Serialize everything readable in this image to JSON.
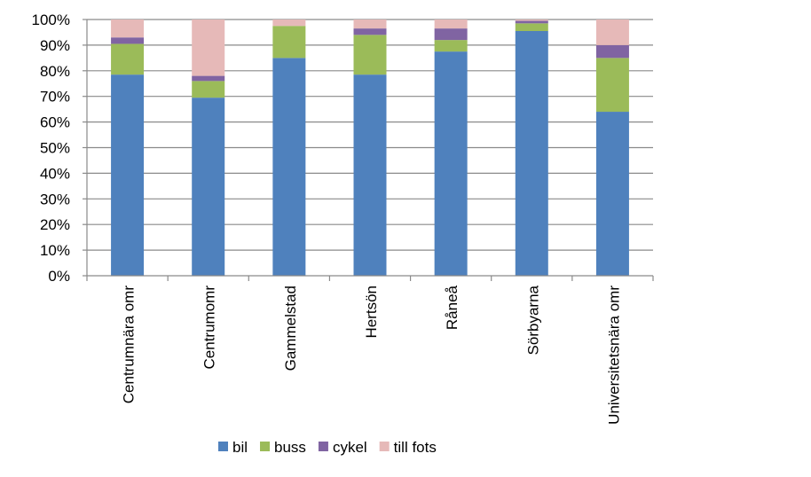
{
  "chart_data": {
    "type": "bar",
    "stacked": true,
    "percent": true,
    "categories": [
      "Centrumnära omr",
      "Centrumomr",
      "Gammelstad",
      "Hertsön",
      "Råneå",
      "Sörbyarna",
      "Universitetsnära omr"
    ],
    "series": [
      {
        "name": "bil",
        "color": "#4F81BD",
        "values": [
          78.5,
          69.5,
          85,
          78.5,
          87.5,
          95.5,
          64
        ]
      },
      {
        "name": "buss",
        "color": "#9BBB59",
        "values": [
          12,
          6.5,
          12.5,
          15.5,
          4.5,
          3,
          21
        ]
      },
      {
        "name": "cykel",
        "color": "#8064A2",
        "values": [
          2.5,
          2,
          0,
          2.5,
          4.5,
          1,
          5
        ]
      },
      {
        "name": "till fots",
        "color": "#E6B9B8",
        "values": [
          7,
          22,
          2.5,
          3.5,
          3.5,
          0.5,
          10
        ]
      }
    ],
    "yticks": [
      "0%",
      "10%",
      "20%",
      "30%",
      "40%",
      "50%",
      "60%",
      "70%",
      "80%",
      "90%",
      "100%"
    ],
    "ylim": [
      0,
      100
    ],
    "grid": true,
    "legend_position": "bottom",
    "title": "",
    "xlabel": "",
    "ylabel": ""
  }
}
